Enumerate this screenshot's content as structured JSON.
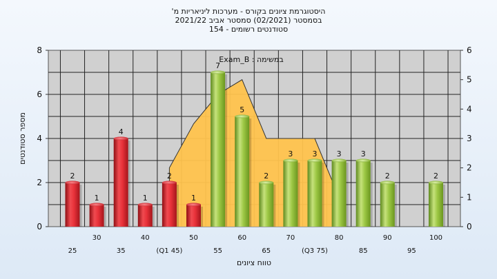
{
  "chart_data": {
    "type": "bar",
    "title_lines": [
      "היסטוגרמת ציונים בקורס - מערכות ליניאריות מ'",
      "בסמסטר  (02/2021)  סמסטר אביב 2021/22",
      "סטודנטים רשומים - 154"
    ],
    "legend_text": "במשימה : Exam_B",
    "xlabel": "טווח ציונים",
    "ylabel": "מספר סטודנטים",
    "ylim": [
      0,
      8
    ],
    "y2lim": [
      0,
      6
    ],
    "yticks": [
      "0",
      "2",
      "4",
      "6",
      "8"
    ],
    "y2ticks": [
      "0",
      "1",
      "2",
      "3",
      "4",
      "5",
      "6"
    ],
    "categories": [
      "25",
      "30",
      "35",
      "40",
      "(Q1 45)",
      "50",
      "55",
      "60",
      "65",
      "70",
      "(Q3 75)",
      "80",
      "85",
      "90",
      "95",
      "100"
    ],
    "values": [
      2,
      1,
      4,
      1,
      2,
      1,
      7,
      5,
      2,
      3,
      3,
      3,
      3,
      2,
      0,
      2
    ],
    "value_labels": [
      "2",
      "1",
      "4",
      "1",
      "2",
      "1",
      "7",
      "5",
      "2",
      "3",
      "3",
      "3",
      "3",
      "2",
      "",
      "2"
    ],
    "bar_groups": [
      "red",
      "red",
      "red",
      "red",
      "red",
      "red",
      "green",
      "green",
      "green",
      "green",
      "green",
      "green",
      "green",
      "green",
      "green",
      "green"
    ],
    "distribution_y2": [
      [
        4,
        0
      ],
      [
        4,
        2
      ],
      [
        5,
        3.5
      ],
      [
        6,
        4.5
      ],
      [
        7,
        5
      ],
      [
        8,
        3
      ],
      [
        9,
        3
      ],
      [
        10,
        3
      ],
      [
        11,
        1
      ]
    ],
    "colors": {
      "red": "#e8323a",
      "green": "#9dc845",
      "distribution": "#ffc34d",
      "plot_bg": "#d0d0d0",
      "grid": "#222222"
    }
  }
}
